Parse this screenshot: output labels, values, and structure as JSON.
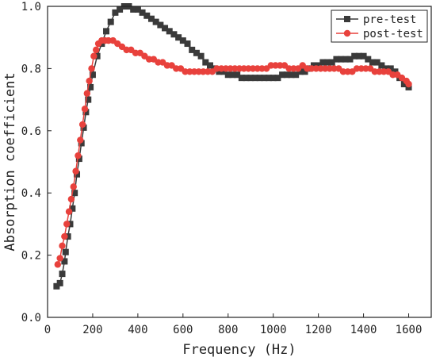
{
  "chart_data": {
    "type": "line",
    "title": "",
    "xlabel": "Frequency (Hz)",
    "ylabel": "Absorption coefficient",
    "xlim": [
      0,
      1700
    ],
    "ylim": [
      0.0,
      1.0
    ],
    "xticks": [
      0,
      200,
      400,
      600,
      800,
      1000,
      1200,
      1400,
      1600
    ],
    "yticks": [
      0.0,
      0.2,
      0.4,
      0.6,
      0.8,
      1.0
    ],
    "xtick_labels": [
      "0",
      "200",
      "400",
      "600",
      "800",
      "1000",
      "1200",
      "1400",
      "1600"
    ],
    "ytick_labels": [
      "0.0",
      "0.2",
      "0.4",
      "0.6",
      "0.8",
      "1.0"
    ],
    "grid": false,
    "legend_position": "top-right",
    "series": [
      {
        "name": "pre-test",
        "color": "#3a3a3a",
        "marker": "square",
        "points": [
          [
            40,
            0.1
          ],
          [
            55,
            0.11
          ],
          [
            65,
            0.14
          ],
          [
            75,
            0.18
          ],
          [
            80,
            0.21
          ],
          [
            90,
            0.26
          ],
          [
            100,
            0.3
          ],
          [
            110,
            0.35
          ],
          [
            120,
            0.4
          ],
          [
            130,
            0.46
          ],
          [
            140,
            0.51
          ],
          [
            150,
            0.56
          ],
          [
            160,
            0.61
          ],
          [
            170,
            0.66
          ],
          [
            180,
            0.7
          ],
          [
            190,
            0.74
          ],
          [
            200,
            0.78
          ],
          [
            220,
            0.84
          ],
          [
            240,
            0.88
          ],
          [
            260,
            0.92
          ],
          [
            280,
            0.95
          ],
          [
            300,
            0.98
          ],
          [
            320,
            0.99
          ],
          [
            340,
            1.0
          ],
          [
            360,
            1.0
          ],
          [
            380,
            0.99
          ],
          [
            400,
            0.99
          ],
          [
            420,
            0.98
          ],
          [
            440,
            0.97
          ],
          [
            460,
            0.96
          ],
          [
            480,
            0.95
          ],
          [
            500,
            0.94
          ],
          [
            520,
            0.93
          ],
          [
            540,
            0.92
          ],
          [
            560,
            0.91
          ],
          [
            580,
            0.9
          ],
          [
            600,
            0.89
          ],
          [
            620,
            0.88
          ],
          [
            640,
            0.86
          ],
          [
            660,
            0.85
          ],
          [
            680,
            0.84
          ],
          [
            700,
            0.82
          ],
          [
            720,
            0.81
          ],
          [
            740,
            0.8
          ],
          [
            760,
            0.79
          ],
          [
            780,
            0.79
          ],
          [
            800,
            0.78
          ],
          [
            820,
            0.78
          ],
          [
            840,
            0.78
          ],
          [
            860,
            0.77
          ],
          [
            880,
            0.77
          ],
          [
            900,
            0.77
          ],
          [
            920,
            0.77
          ],
          [
            940,
            0.77
          ],
          [
            960,
            0.77
          ],
          [
            980,
            0.77
          ],
          [
            1000,
            0.77
          ],
          [
            1020,
            0.77
          ],
          [
            1040,
            0.78
          ],
          [
            1060,
            0.78
          ],
          [
            1080,
            0.78
          ],
          [
            1100,
            0.78
          ],
          [
            1120,
            0.79
          ],
          [
            1140,
            0.79
          ],
          [
            1160,
            0.8
          ],
          [
            1180,
            0.81
          ],
          [
            1200,
            0.81
          ],
          [
            1220,
            0.82
          ],
          [
            1240,
            0.82
          ],
          [
            1260,
            0.82
          ],
          [
            1280,
            0.83
          ],
          [
            1300,
            0.83
          ],
          [
            1320,
            0.83
          ],
          [
            1340,
            0.83
          ],
          [
            1360,
            0.84
          ],
          [
            1380,
            0.84
          ],
          [
            1400,
            0.84
          ],
          [
            1420,
            0.83
          ],
          [
            1440,
            0.82
          ],
          [
            1460,
            0.82
          ],
          [
            1480,
            0.81
          ],
          [
            1500,
            0.8
          ],
          [
            1520,
            0.8
          ],
          [
            1540,
            0.79
          ],
          [
            1560,
            0.77
          ],
          [
            1580,
            0.75
          ],
          [
            1600,
            0.74
          ]
        ]
      },
      {
        "name": "post-test",
        "color": "#e8413c",
        "marker": "circle",
        "points": [
          [
            45,
            0.17
          ],
          [
            55,
            0.19
          ],
          [
            65,
            0.23
          ],
          [
            75,
            0.26
          ],
          [
            85,
            0.3
          ],
          [
            95,
            0.34
          ],
          [
            105,
            0.38
          ],
          [
            115,
            0.42
          ],
          [
            125,
            0.47
          ],
          [
            135,
            0.52
          ],
          [
            145,
            0.57
          ],
          [
            155,
            0.62
          ],
          [
            165,
            0.67
          ],
          [
            175,
            0.72
          ],
          [
            185,
            0.76
          ],
          [
            195,
            0.8
          ],
          [
            205,
            0.84
          ],
          [
            215,
            0.86
          ],
          [
            225,
            0.88
          ],
          [
            240,
            0.89
          ],
          [
            255,
            0.89
          ],
          [
            270,
            0.89
          ],
          [
            290,
            0.89
          ],
          [
            310,
            0.88
          ],
          [
            330,
            0.87
          ],
          [
            350,
            0.86
          ],
          [
            370,
            0.86
          ],
          [
            390,
            0.85
          ],
          [
            410,
            0.85
          ],
          [
            430,
            0.84
          ],
          [
            450,
            0.83
          ],
          [
            470,
            0.83
          ],
          [
            490,
            0.82
          ],
          [
            510,
            0.82
          ],
          [
            530,
            0.81
          ],
          [
            550,
            0.81
          ],
          [
            570,
            0.8
          ],
          [
            590,
            0.8
          ],
          [
            610,
            0.79
          ],
          [
            630,
            0.79
          ],
          [
            650,
            0.79
          ],
          [
            670,
            0.79
          ],
          [
            690,
            0.79
          ],
          [
            710,
            0.79
          ],
          [
            730,
            0.79
          ],
          [
            750,
            0.8
          ],
          [
            770,
            0.8
          ],
          [
            790,
            0.8
          ],
          [
            810,
            0.8
          ],
          [
            830,
            0.8
          ],
          [
            850,
            0.8
          ],
          [
            870,
            0.8
          ],
          [
            890,
            0.8
          ],
          [
            910,
            0.8
          ],
          [
            930,
            0.8
          ],
          [
            950,
            0.8
          ],
          [
            970,
            0.8
          ],
          [
            990,
            0.81
          ],
          [
            1010,
            0.81
          ],
          [
            1030,
            0.81
          ],
          [
            1050,
            0.81
          ],
          [
            1070,
            0.8
          ],
          [
            1090,
            0.8
          ],
          [
            1110,
            0.8
          ],
          [
            1130,
            0.81
          ],
          [
            1150,
            0.8
          ],
          [
            1170,
            0.8
          ],
          [
            1190,
            0.8
          ],
          [
            1210,
            0.8
          ],
          [
            1230,
            0.8
          ],
          [
            1250,
            0.8
          ],
          [
            1270,
            0.8
          ],
          [
            1290,
            0.8
          ],
          [
            1310,
            0.79
          ],
          [
            1330,
            0.79
          ],
          [
            1350,
            0.79
          ],
          [
            1370,
            0.8
          ],
          [
            1390,
            0.8
          ],
          [
            1410,
            0.8
          ],
          [
            1430,
            0.8
          ],
          [
            1450,
            0.79
          ],
          [
            1470,
            0.79
          ],
          [
            1490,
            0.79
          ],
          [
            1510,
            0.79
          ],
          [
            1530,
            0.78
          ],
          [
            1550,
            0.78
          ],
          [
            1570,
            0.77
          ],
          [
            1590,
            0.76
          ],
          [
            1600,
            0.75
          ]
        ]
      }
    ]
  }
}
